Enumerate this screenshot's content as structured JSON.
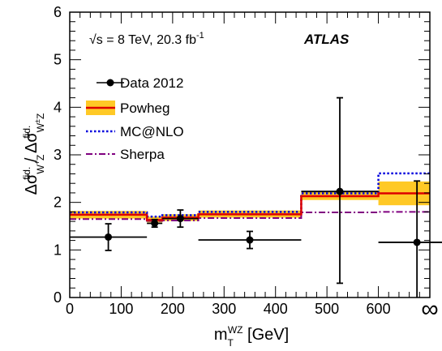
{
  "chart_data": {
    "type": "line",
    "annotation": {
      "energy": "√s = 8 TeV, 20.3 fb",
      "lumi_exp": "-1",
      "experiment": "ATLAS"
    },
    "xlabel": {
      "main": "m",
      "sup": "WZ",
      "sub": "T",
      "unit": "[GeV]"
    },
    "ylabel": {
      "delta": "Δσ",
      "sup": "fid.",
      "sub_num": "W",
      "sub_num_sup": "+",
      "sub_num_tail": "Z",
      "sep": " / ",
      "sub_den": "W",
      "sub_den_sup": "±",
      "sub_den_tail": "Z"
    },
    "xlim": [
      0,
      700
    ],
    "ylim": [
      0,
      6
    ],
    "x_ticks": [
      "0",
      "100",
      "200",
      "300",
      "400",
      "500",
      "600"
    ],
    "x_tick_values": [
      0,
      100,
      200,
      300,
      400,
      500,
      600
    ],
    "x_overflow_label": "∞",
    "y_ticks": [
      "0",
      "1",
      "2",
      "3",
      "4",
      "5",
      "6"
    ],
    "y_tick_values": [
      0,
      1,
      2,
      3,
      4,
      5,
      6
    ],
    "bin_edges": [
      0,
      150,
      180,
      250,
      450,
      600,
      700
    ],
    "legend_position": "upper-left",
    "series": [
      {
        "name": "Data 2012",
        "kind": "points",
        "color": "#000000",
        "x": [
          75,
          165,
          215,
          350,
          525,
          675
        ],
        "xerr_low": [
          75,
          15,
          35,
          100,
          75,
          75
        ],
        "xerr_high": [
          75,
          15,
          35,
          100,
          75,
          75
        ],
        "y": [
          1.27,
          1.56,
          1.66,
          1.21,
          2.23,
          1.16
        ],
        "yerr_low": [
          0.28,
          0.08,
          0.18,
          0.18,
          1.93,
          1.16
        ],
        "yerr_high": [
          0.28,
          0.08,
          0.18,
          0.18,
          1.97,
          1.29
        ]
      },
      {
        "name": "Powheg",
        "kind": "step",
        "color": "#dd0000",
        "band_color": "#ffc926",
        "values": [
          1.74,
          1.63,
          1.68,
          1.75,
          2.13,
          2.19
        ],
        "band_low": [
          1.66,
          1.58,
          1.61,
          1.68,
          2.05,
          1.94
        ],
        "band_high": [
          1.82,
          1.7,
          1.75,
          1.83,
          2.22,
          2.44
        ]
      },
      {
        "name": "MC@NLO",
        "kind": "step",
        "color": "#0000dd",
        "values": [
          1.79,
          1.7,
          1.73,
          1.8,
          2.19,
          2.61
        ]
      },
      {
        "name": "Sherpa",
        "kind": "step",
        "color": "#800080",
        "values": [
          1.65,
          1.61,
          1.62,
          1.67,
          1.79,
          1.8
        ]
      }
    ]
  }
}
